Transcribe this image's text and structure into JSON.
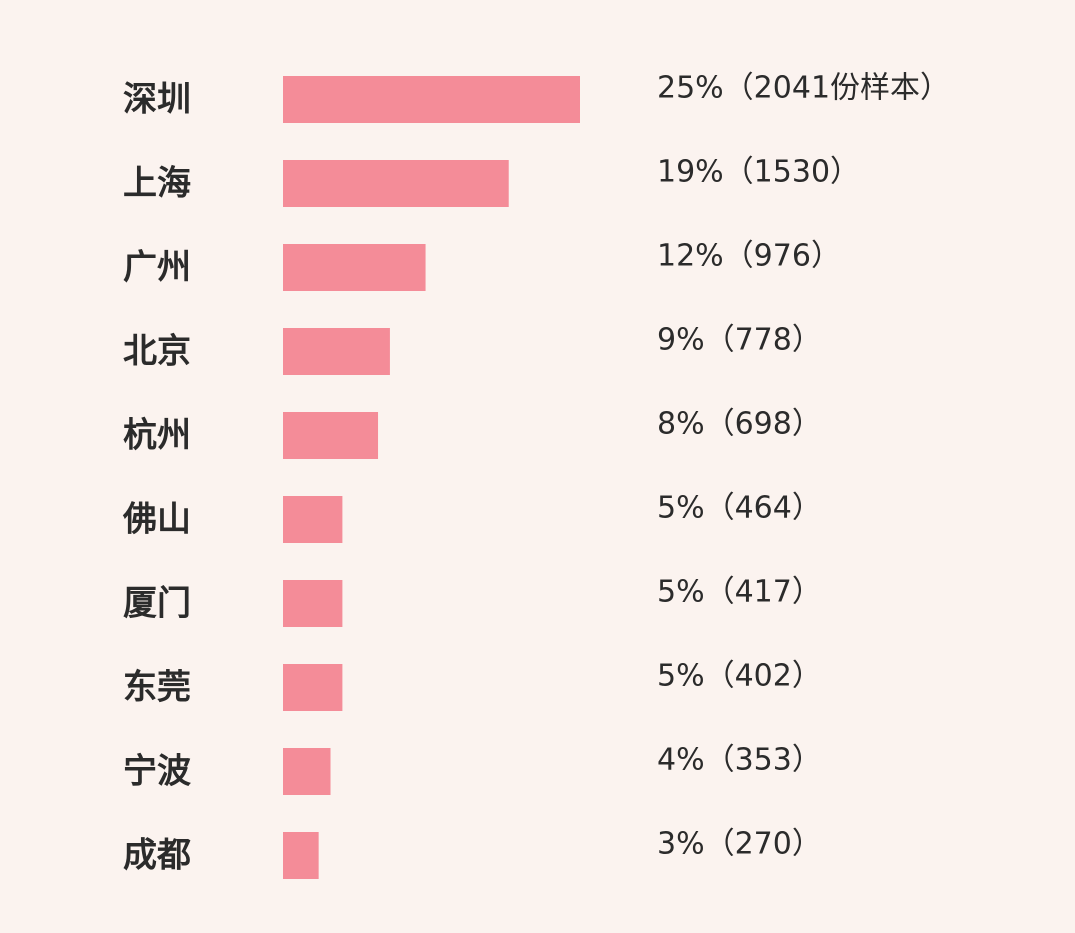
{
  "colors": {
    "background": "#FBF3EF",
    "bar": "#F48C98"
  },
  "chart_data": {
    "type": "bar",
    "orientation": "horizontal",
    "title": "",
    "xlabel": "",
    "ylabel": "",
    "grid": false,
    "legend": "none",
    "xlim": [
      0,
      25
    ],
    "categories": [
      "深圳",
      "上海",
      "广州",
      "北京",
      "杭州",
      "佛山",
      "厦门",
      "东莞",
      "宁波",
      "成都"
    ],
    "values": [
      25,
      19,
      12,
      9,
      8,
      5,
      5,
      5,
      4,
      3
    ],
    "samples": [
      2041,
      1530,
      976,
      778,
      698,
      464,
      417,
      402,
      353,
      270
    ],
    "value_labels": [
      "25%（2041份样本）",
      "19%（1530）",
      "12%（976）",
      "9%（778）",
      "8%（698）",
      "5%（464）",
      "5%（417）",
      "5%（402）",
      "4%（353）",
      "3%（270）"
    ]
  }
}
